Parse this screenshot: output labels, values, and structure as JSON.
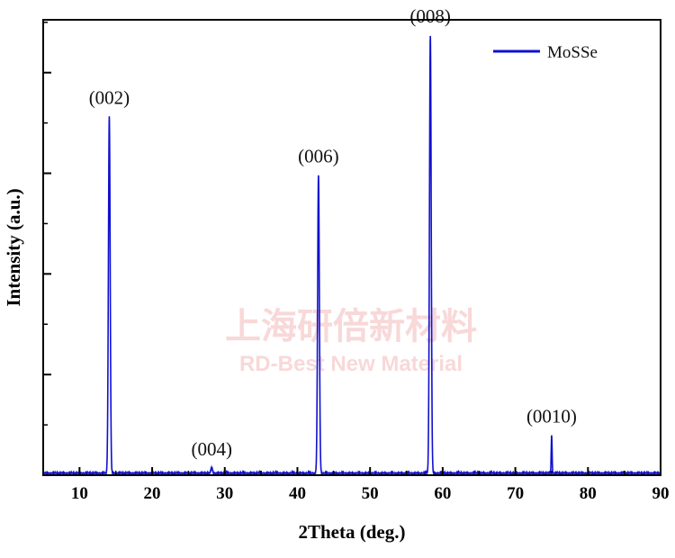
{
  "chart_data": {
    "type": "line",
    "xlabel": "2Theta (deg.)",
    "ylabel": "Intensity (a.u.)",
    "xlim": [
      5,
      90
    ],
    "ylim": [
      0,
      1.0
    ],
    "xticks": [
      10,
      20,
      30,
      40,
      50,
      60,
      70,
      80,
      90
    ],
    "y_tick_labels_shown": false,
    "grid": false,
    "legend_placement": "top-right",
    "series": [
      {
        "name": "MoSSe",
        "color": "#1010d0",
        "peaks": [
          {
            "x": 14.1,
            "y": 0.79,
            "width": 0.12
          },
          {
            "x": 28.2,
            "y": 0.012,
            "width": 0.12
          },
          {
            "x": 42.9,
            "y": 0.66,
            "width": 0.12
          },
          {
            "x": 58.3,
            "y": 0.97,
            "width": 0.12
          },
          {
            "x": 75.0,
            "y": 0.085,
            "width": 0.06
          }
        ]
      }
    ],
    "annotations": [
      {
        "text": "(002)",
        "x": 14.1,
        "y": 0.79
      },
      {
        "text": "(004)",
        "x": 28.2,
        "y": 0.012
      },
      {
        "text": "(006)",
        "x": 42.9,
        "y": 0.66
      },
      {
        "text": "(008)",
        "x": 58.3,
        "y": 0.97
      },
      {
        "text": "(0010)",
        "x": 75.0,
        "y": 0.085
      }
    ]
  },
  "watermark": {
    "line1": "上海研倍新材料",
    "line2": "RD-Best New Material",
    "color": "#f3b9b9"
  }
}
